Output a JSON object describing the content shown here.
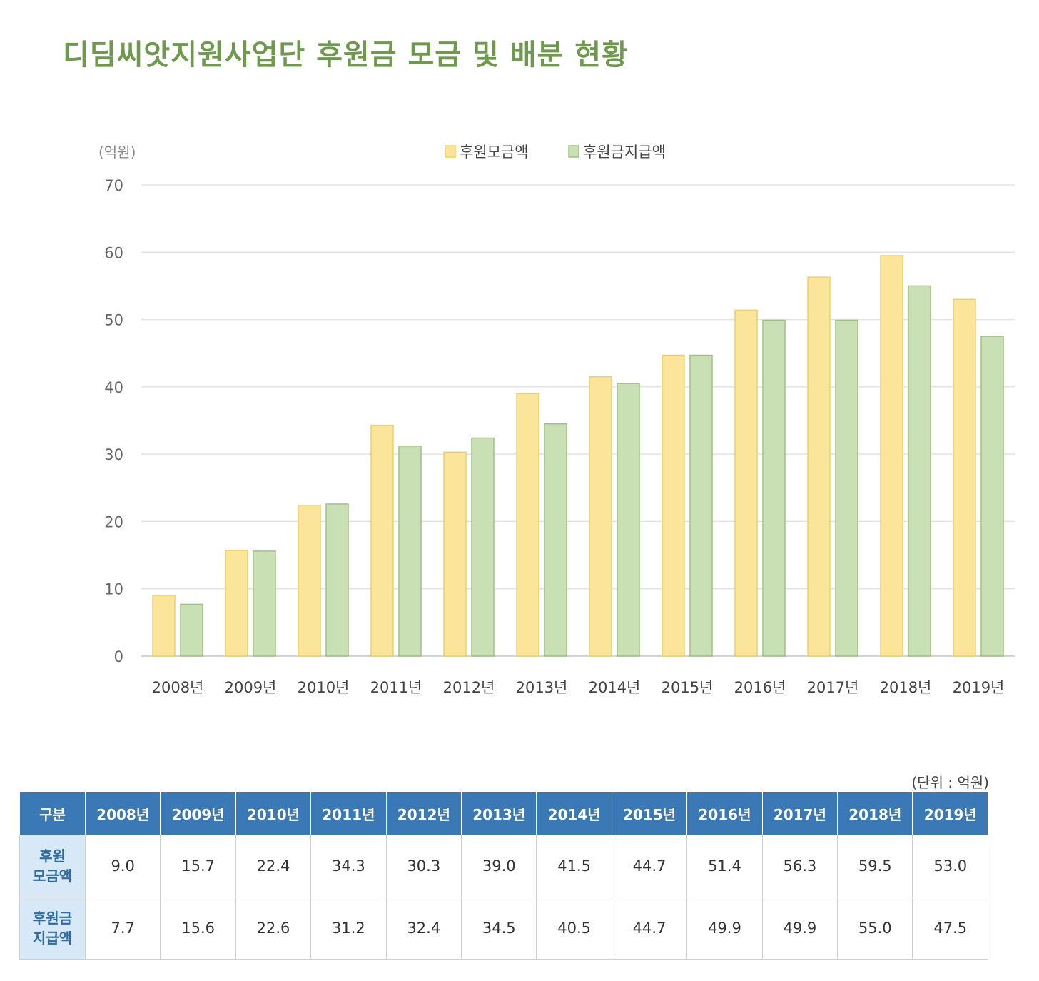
{
  "page_title": "디딤씨앗지원사업단 후원금 모금 및 배분 현황",
  "chart_data": {
    "type": "bar",
    "y_unit_label": "(억원)",
    "categories": [
      "2008년",
      "2009년",
      "2010년",
      "2011년",
      "2012년",
      "2013년",
      "2014년",
      "2015년",
      "2016년",
      "2017년",
      "2018년",
      "2019년"
    ],
    "series": [
      {
        "name": "후원모금액",
        "color": "#fae59a",
        "stroke": "#f0d061",
        "values": [
          9.0,
          15.7,
          22.4,
          34.3,
          30.3,
          39.0,
          41.5,
          44.7,
          51.4,
          56.3,
          59.5,
          53.0
        ]
      },
      {
        "name": "후원금지급액",
        "color": "#c9e0b5",
        "stroke": "#9fc283",
        "values": [
          7.7,
          15.6,
          22.6,
          31.2,
          32.4,
          34.5,
          40.5,
          44.7,
          49.9,
          49.9,
          55.0,
          47.5
        ]
      }
    ],
    "ylim": [
      0,
      70
    ],
    "yticks": [
      0,
      10,
      20,
      30,
      40,
      50,
      60,
      70
    ],
    "grid": true,
    "legend": "top-center"
  },
  "table": {
    "unit_note": "(단위 : 억원)",
    "header_label": "구분",
    "years": [
      "2008년",
      "2009년",
      "2010년",
      "2011년",
      "2012년",
      "2013년",
      "2014년",
      "2015년",
      "2016년",
      "2017년",
      "2018년",
      "2019년"
    ],
    "rows": [
      {
        "label_line1": "후원",
        "label_line2": "모금액",
        "values": [
          "9.0",
          "15.7",
          "22.4",
          "34.3",
          "30.3",
          "39.0",
          "41.5",
          "44.7",
          "51.4",
          "56.3",
          "59.5",
          "53.0"
        ]
      },
      {
        "label_line1": "후원금",
        "label_line2": "지급액",
        "values": [
          "7.7",
          "15.6",
          "22.6",
          "31.2",
          "32.4",
          "34.5",
          "40.5",
          "44.7",
          "49.9",
          "49.9",
          "55.0",
          "47.5"
        ]
      }
    ]
  }
}
